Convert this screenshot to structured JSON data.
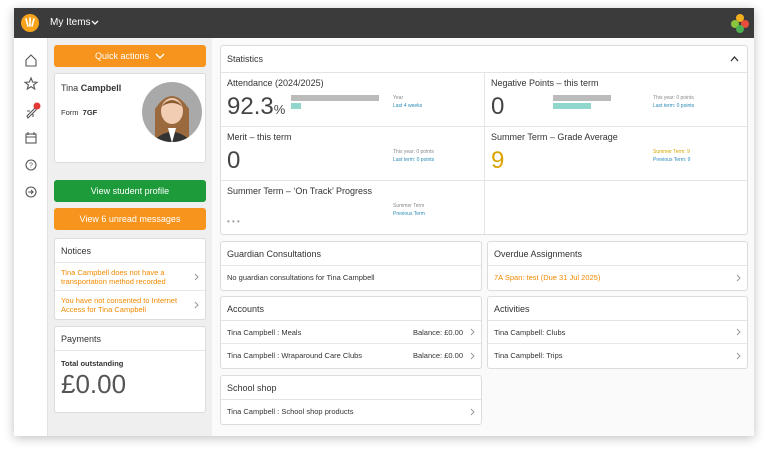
{
  "header": {
    "menu": "My Items"
  },
  "sidebar": {
    "badge": "2"
  },
  "quick_actions": "Quick actions",
  "student": {
    "first_name": "Tina",
    "last_name": "Campbell",
    "form_label": "Form",
    "form": "7GF"
  },
  "buttons": {
    "profile": "View student profile",
    "messages": "View 6 unread messages"
  },
  "notices": {
    "title": "Notices",
    "items": [
      "Tina Campbell does not have a transportation method recorded",
      "You have not consented to Internet Access for Tina Campbell"
    ]
  },
  "payments": {
    "title": "Payments",
    "label": "Total outstanding",
    "amount": "£0.00"
  },
  "statistics": {
    "title": "Statistics",
    "cards": [
      {
        "title": "Attendance (2024/2025)",
        "value": "92.3",
        "unit": "%",
        "notes": [
          "Year",
          "Last 4 weeks"
        ]
      },
      {
        "title": "Negative Points – this term",
        "value": "0",
        "notes": [
          "This year: 0 points",
          "Last term: 0 points"
        ]
      },
      {
        "title": "Merit – this term",
        "value": "0",
        "notes": [
          "This year: 0 points",
          "Last term: 0 points"
        ]
      },
      {
        "title": "Summer Term – Grade Average",
        "value": "9",
        "notes": [
          "Summer Term: 9",
          "Previous Term: 9"
        ]
      },
      {
        "title": "Summer Term – ‘On Track’ Progress",
        "value": "• • •",
        "notes": [
          "Summer Term",
          "Previous Term"
        ]
      }
    ]
  },
  "guardian": {
    "title": "Guardian Consultations",
    "text": "No guardian consultations for Tina Campbell"
  },
  "overdue": {
    "title": "Overdue Assignments",
    "item": "7A Span: test",
    "due": "(Due 31 Jul 2025)"
  },
  "accounts": {
    "title": "Accounts",
    "rows": [
      {
        "name": "Tina Campbell : Meals",
        "balance": "Balance: £0.00"
      },
      {
        "name": "Tina Campbell : Wraparound Care Clubs",
        "balance": "Balance: £0.00"
      }
    ]
  },
  "activities": {
    "title": "Activities",
    "rows": [
      "Tina Campbell: Clubs",
      "Tina Campbell: Trips"
    ]
  },
  "shop": {
    "title": "School shop",
    "rows": [
      "Tina Campbell : School shop products"
    ]
  }
}
